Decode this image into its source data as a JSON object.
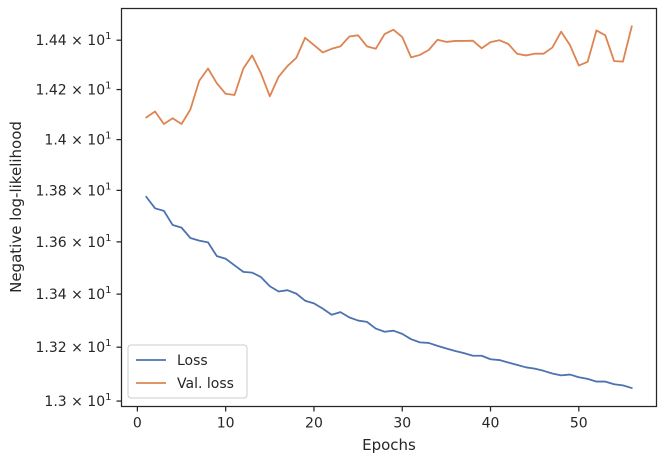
{
  "chart_data": {
    "type": "line",
    "title": "",
    "xlabel": "Epochs",
    "ylabel": "Negative log-likelihood",
    "xlim": [
      -1.8,
      58.8
    ],
    "ylim": [
      12.98,
      14.53
    ],
    "yscale": "log",
    "grid": false,
    "legend_position": "lower-left",
    "x_ticks": [
      0,
      10,
      20,
      30,
      40,
      50
    ],
    "y_ticks": [
      {
        "value": 13.0,
        "mantissa": "1.3",
        "exp": "1"
      },
      {
        "value": 13.2,
        "mantissa": "1.32",
        "exp": "1"
      },
      {
        "value": 13.4,
        "mantissa": "1.34",
        "exp": "1"
      },
      {
        "value": 13.6,
        "mantissa": "1.36",
        "exp": "1"
      },
      {
        "value": 13.8,
        "mantissa": "1.38",
        "exp": "1"
      },
      {
        "value": 14.0,
        "mantissa": "1.4",
        "exp": "1"
      },
      {
        "value": 14.2,
        "mantissa": "1.42",
        "exp": "1"
      },
      {
        "value": 14.4,
        "mantissa": "1.44",
        "exp": "1"
      }
    ],
    "x": [
      1,
      2,
      3,
      4,
      5,
      6,
      7,
      8,
      9,
      10,
      11,
      12,
      13,
      14,
      15,
      16,
      17,
      18,
      19,
      20,
      21,
      22,
      23,
      24,
      25,
      26,
      27,
      28,
      29,
      30,
      31,
      32,
      33,
      34,
      35,
      36,
      37,
      38,
      39,
      40,
      41,
      42,
      43,
      44,
      45,
      46,
      47,
      48,
      49,
      50,
      51,
      52,
      53,
      54,
      55,
      56
    ],
    "series": [
      {
        "name": "Loss",
        "color": "#4c72b0",
        "values": [
          13.775,
          13.73,
          13.72,
          13.665,
          13.655,
          13.615,
          13.605,
          13.598,
          13.545,
          13.535,
          13.51,
          13.485,
          13.482,
          13.465,
          13.43,
          13.41,
          13.415,
          13.402,
          13.375,
          13.365,
          13.345,
          13.322,
          13.332,
          13.312,
          13.3,
          13.295,
          13.27,
          13.258,
          13.262,
          13.25,
          13.23,
          13.218,
          13.216,
          13.205,
          13.195,
          13.186,
          13.178,
          13.168,
          13.168,
          13.155,
          13.152,
          13.143,
          13.134,
          13.125,
          13.12,
          13.112,
          13.102,
          13.095,
          13.098,
          13.088,
          13.082,
          13.072,
          13.072,
          13.062,
          13.058,
          13.048
        ]
      },
      {
        "name": "Val. loss",
        "color": "#dd8452",
        "values": [
          14.088,
          14.112,
          14.062,
          14.085,
          14.062,
          14.12,
          14.235,
          14.285,
          14.225,
          14.183,
          14.178,
          14.285,
          14.338,
          14.265,
          14.173,
          14.252,
          14.295,
          14.328,
          14.41,
          14.38,
          14.35,
          14.365,
          14.375,
          14.415,
          14.42,
          14.375,
          14.365,
          14.425,
          14.443,
          14.413,
          14.33,
          14.34,
          14.36,
          14.402,
          14.393,
          14.397,
          14.397,
          14.398,
          14.367,
          14.392,
          14.4,
          14.385,
          14.345,
          14.338,
          14.345,
          14.345,
          14.37,
          14.435,
          14.38,
          14.297,
          14.312,
          14.44,
          14.42,
          14.315,
          14.313,
          14.457
        ]
      }
    ]
  }
}
